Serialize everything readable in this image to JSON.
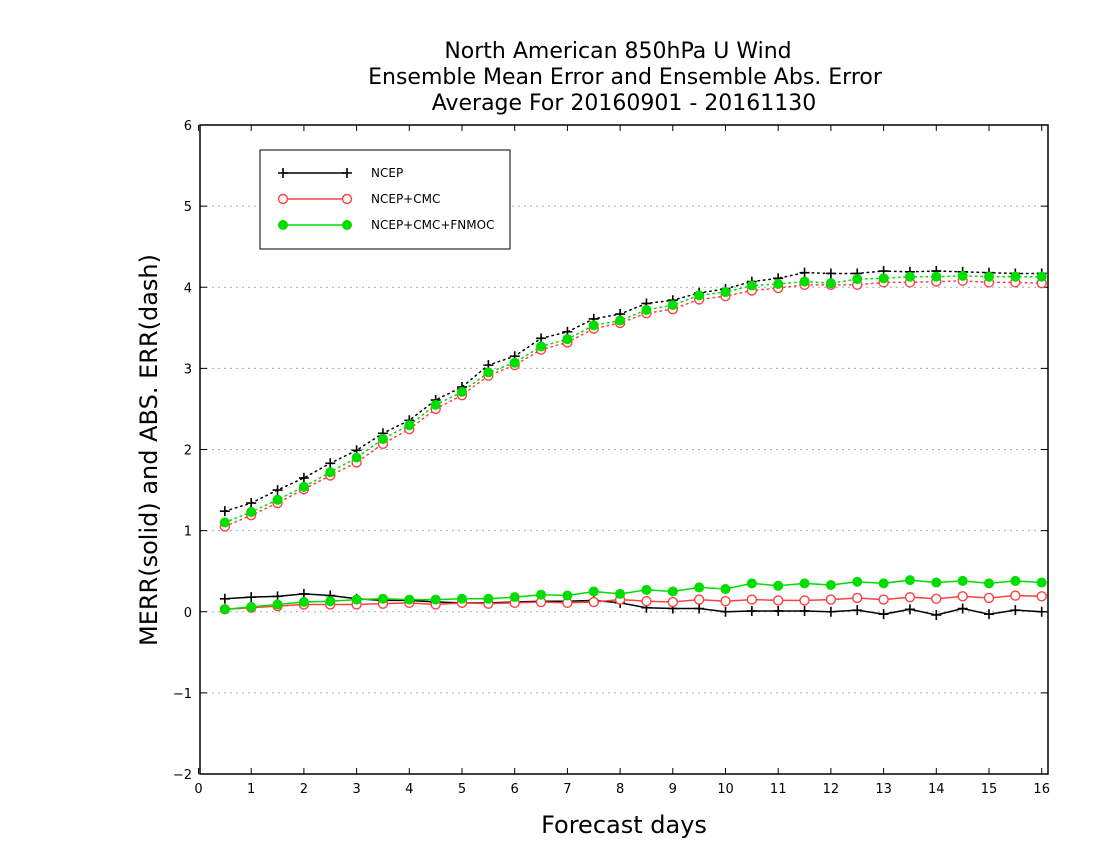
{
  "chart_data": {
    "type": "line",
    "title": [
      "North American 850hPa U Wind",
      "Ensemble Mean Error and Ensemble Abs. Error",
      "Average For 20160901 - 20161130"
    ],
    "xlabel": "Forecast days",
    "ylabel": "MERR(solid) and ABS. ERR(dash)",
    "xlim": [
      0,
      16.1
    ],
    "ylim": [
      -2,
      6
    ],
    "xticks": [
      0,
      1,
      2,
      3,
      4,
      5,
      6,
      7,
      8,
      9,
      10,
      11,
      12,
      13,
      14,
      15,
      16
    ],
    "yticks": [
      -2,
      -1,
      0,
      1,
      2,
      3,
      4,
      5,
      6
    ],
    "ytick_labels": [
      "−2",
      "−1",
      "0",
      "1",
      "2",
      "3",
      "4",
      "5",
      "6"
    ],
    "grid": "horizontal dotted",
    "legend_position": "top-left",
    "x": [
      0.5,
      1,
      1.5,
      2,
      2.5,
      3,
      3.5,
      4,
      4.5,
      5,
      5.5,
      6,
      6.5,
      7,
      7.5,
      8,
      8.5,
      9,
      9.5,
      10,
      10.5,
      11,
      11.5,
      12,
      12.5,
      13,
      13.5,
      14,
      14.5,
      15,
      15.5,
      16
    ],
    "series": [
      {
        "name": "NCEP",
        "color": "#000000",
        "marker": "plus",
        "merr": [
          0.16,
          0.18,
          0.19,
          0.22,
          0.2,
          0.16,
          0.14,
          0.14,
          0.12,
          0.11,
          0.11,
          0.12,
          0.13,
          0.13,
          0.14,
          0.11,
          0.05,
          0.04,
          0.04,
          0.0,
          0.01,
          0.01,
          0.01,
          0.0,
          0.02,
          -0.03,
          0.03,
          -0.04,
          0.04,
          -0.03,
          0.02,
          0.0
        ],
        "abs_err": [
          1.24,
          1.34,
          1.5,
          1.65,
          1.83,
          1.99,
          2.2,
          2.36,
          2.61,
          2.77,
          3.04,
          3.15,
          3.37,
          3.45,
          3.61,
          3.67,
          3.8,
          3.84,
          3.93,
          3.98,
          4.07,
          4.11,
          4.18,
          4.17,
          4.17,
          4.2,
          4.19,
          4.2,
          4.19,
          4.18,
          4.17,
          4.17
        ]
      },
      {
        "name": "NCEP+CMC",
        "color": "#ff4040",
        "marker": "open-circle",
        "merr": [
          0.03,
          0.05,
          0.07,
          0.09,
          0.09,
          0.09,
          0.1,
          0.11,
          0.09,
          0.11,
          0.1,
          0.11,
          0.12,
          0.11,
          0.12,
          0.15,
          0.13,
          0.12,
          0.15,
          0.13,
          0.15,
          0.14,
          0.14,
          0.15,
          0.17,
          0.15,
          0.18,
          0.16,
          0.19,
          0.17,
          0.2,
          0.19
        ],
        "abs_err": [
          1.05,
          1.19,
          1.34,
          1.51,
          1.68,
          1.84,
          2.07,
          2.25,
          2.5,
          2.67,
          2.91,
          3.04,
          3.23,
          3.32,
          3.49,
          3.56,
          3.68,
          3.73,
          3.85,
          3.89,
          3.96,
          3.99,
          4.03,
          4.03,
          4.03,
          4.06,
          4.06,
          4.07,
          4.08,
          4.06,
          4.06,
          4.05
        ]
      },
      {
        "name": "NCEP+CMC+FNMOC",
        "color": "#00dd00",
        "marker": "filled-circle",
        "merr": [
          0.03,
          0.06,
          0.09,
          0.12,
          0.13,
          0.15,
          0.16,
          0.15,
          0.15,
          0.16,
          0.16,
          0.18,
          0.21,
          0.2,
          0.25,
          0.22,
          0.27,
          0.25,
          0.3,
          0.28,
          0.35,
          0.32,
          0.35,
          0.33,
          0.37,
          0.35,
          0.39,
          0.36,
          0.38,
          0.35,
          0.38,
          0.36
        ],
        "abs_err": [
          1.1,
          1.23,
          1.38,
          1.54,
          1.72,
          1.9,
          2.13,
          2.3,
          2.55,
          2.71,
          2.95,
          3.07,
          3.27,
          3.36,
          3.53,
          3.59,
          3.72,
          3.78,
          3.9,
          3.94,
          4.02,
          4.04,
          4.07,
          4.05,
          4.1,
          4.11,
          4.13,
          4.13,
          4.14,
          4.13,
          4.13,
          4.13
        ]
      }
    ]
  }
}
